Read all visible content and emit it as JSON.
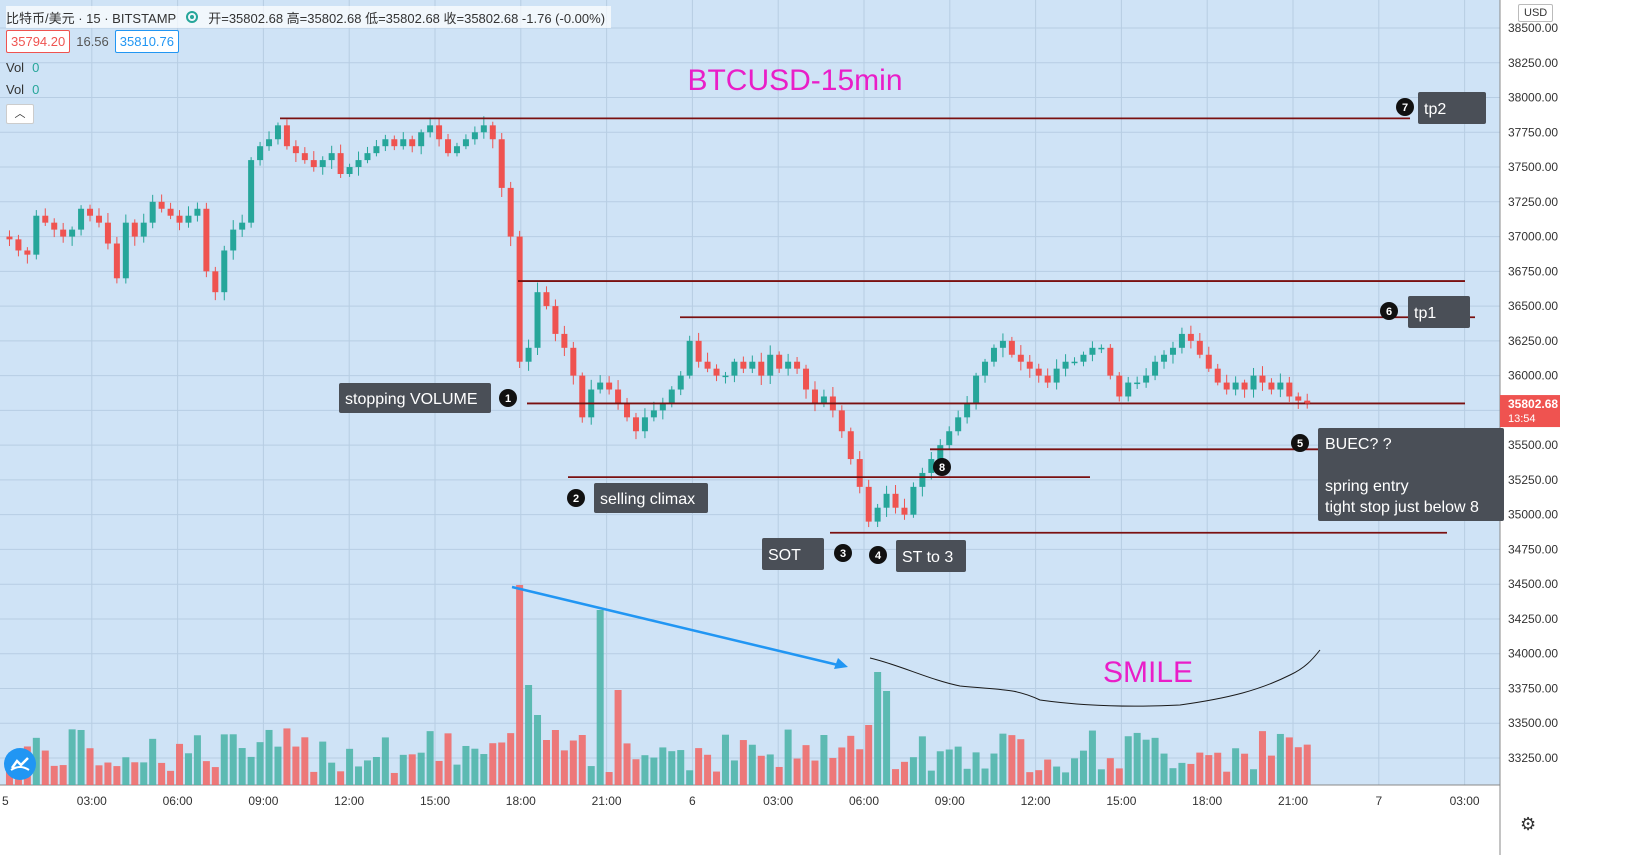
{
  "header": {
    "symbol": "比特币/美元 · 15 · BITSTAMP",
    "ohlc": "开=35802.68 高=35802.68 低=35802.68 收=35802.68 -1.76 (-0.00%)"
  },
  "prices": {
    "bid": "35794.20",
    "spread": "16.56",
    "ask": "35810.76"
  },
  "volume_rows": [
    {
      "label": "Vol",
      "value": "0"
    },
    {
      "label": "Vol",
      "value": "0"
    }
  ],
  "collapse_icon": "chevron-up-icon",
  "currency": "USD",
  "colors": {
    "up": "#26a69a",
    "down": "#ef5350",
    "bg": "#cfe3f6",
    "level_line": "#7a1010",
    "callout": "#4a4f57",
    "title": "#e91ec8",
    "arrow": "#2196f3"
  },
  "chart_title": "BTCUSD-15min",
  "smile_label": "SMILE",
  "price_label": {
    "price": "35802.68",
    "countdown": "13:54"
  },
  "annotations": [
    {
      "num": "1",
      "text": "stopping VOLUME"
    },
    {
      "num": "2",
      "text": "selling climax"
    },
    {
      "num": "3",
      "text": "SOT"
    },
    {
      "num": "4",
      "text": "ST to 3"
    },
    {
      "num": "5",
      "text": "BUEC?  ?"
    },
    {
      "num": "6",
      "text": "tp1"
    },
    {
      "num": "7",
      "text": "tp2"
    },
    {
      "num": "8",
      "text": ""
    }
  ],
  "note_lines": [
    "spring entry",
    "tight  stop just below 8"
  ],
  "chart_data": {
    "type": "candlestick",
    "y_ticks": [
      "38500.00",
      "38250.00",
      "38000.00",
      "37750.00",
      "37500.00",
      "37250.00",
      "37000.00",
      "36750.00",
      "36500.00",
      "36250.00",
      "36000.00",
      "35750.00",
      "35500.00",
      "35250.00",
      "35000.00",
      "34750.00",
      "34500.00",
      "34250.00",
      "34000.00",
      "33750.00",
      "33500.00",
      "33250.00"
    ],
    "x_ticks": [
      "5",
      "03:00",
      "06:00",
      "09:00",
      "12:00",
      "15:00",
      "18:00",
      "21:00",
      "6",
      "03:00",
      "06:00",
      "09:00",
      "12:00",
      "15:00",
      "18:00",
      "21:00",
      "7",
      "03:00"
    ],
    "ylim": [
      33150,
      38600
    ],
    "levels": [
      37850,
      36680,
      36420,
      35800,
      35470,
      35270,
      34870
    ],
    "close_path": [
      36980,
      36900,
      36870,
      37150,
      37100,
      37050,
      37000,
      37050,
      37200,
      37150,
      37100,
      36950,
      36700,
      37100,
      37000,
      37100,
      37250,
      37200,
      37150,
      37100,
      37150,
      37200,
      36750,
      36600,
      36900,
      37050,
      37100,
      37550,
      37650,
      37700,
      37800,
      37650,
      37600,
      37550,
      37500,
      37550,
      37600,
      37450,
      37500,
      37550,
      37600,
      37650,
      37700,
      37650,
      37700,
      37650,
      37750,
      37800,
      37700,
      37600,
      37650,
      37700,
      37750,
      37800,
      37700,
      37350,
      37000,
      36100,
      36200,
      36600,
      36500,
      36300,
      36200,
      36000,
      35700,
      35900,
      35950,
      35900,
      35800,
      35700,
      35600,
      35700,
      35750,
      35800,
      35900,
      36000,
      36250,
      36100,
      36050,
      36000,
      36000,
      36100,
      36050,
      36100,
      36000,
      36150,
      36050,
      36100,
      36050,
      35900,
      35800,
      35850,
      35750,
      35600,
      35400,
      35200,
      34950,
      35050,
      35150,
      35050,
      35000,
      35200,
      35300,
      35400,
      35500,
      35600,
      35700,
      35800,
      36000,
      36100,
      36200,
      36250,
      36150,
      36100,
      36050,
      36000,
      35950,
      36050,
      36100,
      36100,
      36150,
      36200,
      36200,
      36000,
      35850,
      35950,
      35950,
      36000,
      36100,
      36150,
      36200,
      36300,
      36250,
      36150,
      36050,
      35950,
      35900,
      35950,
      35900,
      36000,
      35950,
      35900,
      35950,
      35850,
      35820,
      35800
    ],
    "peak_volumes": [
      "18:00",
      "20:00",
      "05:45"
    ],
    "smile_curve": "volume trough between 06:00 and 21:00",
    "series_count": 2
  }
}
